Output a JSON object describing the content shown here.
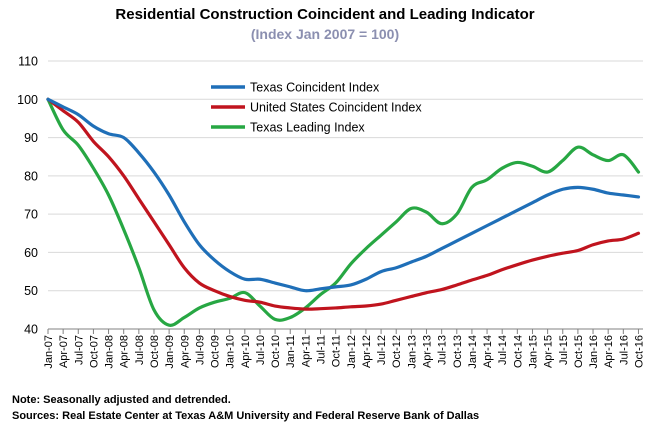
{
  "chart_data": {
    "type": "line",
    "title": "Residential Construction Coincident and Leading Indicator",
    "subtitle": "(Index Jan 2007 = 100)",
    "ylim": [
      40,
      110
    ],
    "yticks": [
      40,
      50,
      60,
      70,
      80,
      90,
      100,
      110
    ],
    "grid": "horizontal",
    "legend_position": "top-left",
    "x_categories": [
      "Jan-07",
      "Apr-07",
      "Jul-07",
      "Oct-07",
      "Jan-08",
      "Apr-08",
      "Jul-08",
      "Oct-08",
      "Jan-09",
      "Apr-09",
      "Jul-09",
      "Oct-09",
      "Jan-10",
      "Apr-10",
      "Jul-10",
      "Oct-10",
      "Jan-11",
      "Apr-11",
      "Jul-11",
      "Oct-11",
      "Jan-12",
      "Apr-12",
      "Jul-12",
      "Oct-12",
      "Jan-13",
      "Apr-13",
      "Jul-13",
      "Oct-13",
      "Jan-14",
      "Apr-14",
      "Jul-14",
      "Oct-14",
      "Jan-15",
      "Apr-15",
      "Jul-15",
      "Oct-15",
      "Jan-16",
      "Apr-16",
      "Jul-16",
      "Oct-16"
    ],
    "series": [
      {
        "name": "Texas Coincident Index",
        "color": "#1f6fb8",
        "values": [
          100,
          98,
          96,
          93,
          91,
          90,
          86,
          81,
          75,
          68,
          62,
          58,
          55,
          53,
          53,
          52,
          51,
          50,
          50.5,
          51,
          51.5,
          53,
          55,
          56,
          57.5,
          59,
          61,
          63,
          65,
          67,
          69,
          71,
          73,
          75,
          76.5,
          77,
          76.5,
          75.5,
          75,
          74.5
        ]
      },
      {
        "name": "United States Coincident Index",
        "color": "#c0141e",
        "values": [
          100,
          97,
          94,
          89,
          85,
          80,
          74,
          68,
          62,
          56,
          52,
          50,
          48.5,
          47.5,
          47,
          46,
          45.5,
          45.2,
          45.3,
          45.5,
          45.8,
          46,
          46.5,
          47.5,
          48.5,
          49.5,
          50.3,
          51.5,
          52.8,
          54,
          55.5,
          56.8,
          58,
          59,
          59.8,
          60.5,
          62,
          63,
          63.5,
          65
        ]
      },
      {
        "name": "Texas Leading Index",
        "color": "#27a743",
        "values": [
          100,
          92,
          88,
          82,
          75,
          66,
          56,
          45,
          41,
          43,
          45.5,
          47,
          48,
          49.5,
          46,
          42.5,
          43,
          45.5,
          49,
          52,
          57,
          61,
          64.5,
          68,
          71.5,
          70.5,
          67.5,
          70,
          77,
          79,
          82,
          83.5,
          82.5,
          81,
          84,
          87.5,
          85.5,
          84,
          85.5,
          81
        ]
      }
    ]
  },
  "notes": {
    "note_line": "Note: Seasonally adjusted and detrended.",
    "sources_line": "Sources: Real Estate Center at Texas A&M University and Federal Reserve Bank of Dallas"
  }
}
